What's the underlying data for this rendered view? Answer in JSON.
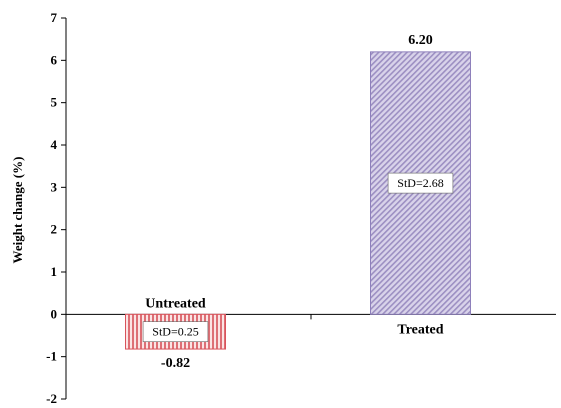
{
  "chart_data": {
    "type": "bar",
    "ylabel": "Weight change (%)",
    "xlabel": "",
    "ylim": [
      -2,
      7
    ],
    "yticks": [
      -2,
      -1,
      0,
      1,
      2,
      3,
      4,
      5,
      6,
      7
    ],
    "grid": false,
    "categories": [
      "Untreated",
      "Treated"
    ],
    "values": [
      -0.82,
      6.2
    ],
    "value_labels": [
      "-0.82",
      "6.20"
    ],
    "std_labels": [
      "StD=0.25",
      "StD=2.68"
    ],
    "colors": [
      "#e8868a",
      "#b0a4cc"
    ]
  }
}
